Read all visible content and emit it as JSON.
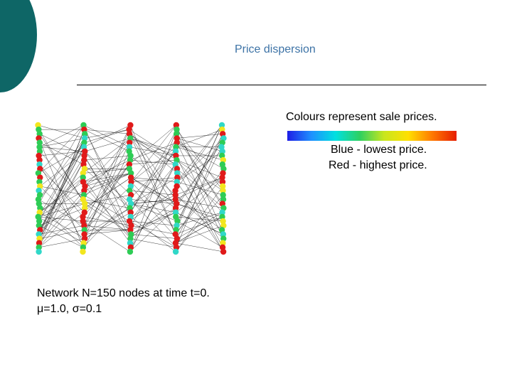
{
  "slide": {
    "title": "Price dispersion",
    "legend": {
      "caption": "Colours represent sale prices.",
      "low_label": "Blue - lowest price.",
      "high_label": "Red - highest price.",
      "gradient_colors": [
        "#1e1ee6",
        "#1e90ff",
        "#00e0e0",
        "#2ed060",
        "#c8e61e",
        "#ffe000",
        "#ff7800",
        "#e61e00"
      ]
    },
    "caption_line1": "Network N=150 nodes at time t=0.",
    "caption_line2": "μ=1.0, σ=0.1"
  },
  "network": {
    "layers": 5,
    "nodes_per_layer": 30,
    "node_colors": {
      "red": "#e01a1a",
      "green": "#2ecc55",
      "cyan": "#30d8c8",
      "yellow": "#f2e61e"
    },
    "edge_color": "#000000"
  }
}
